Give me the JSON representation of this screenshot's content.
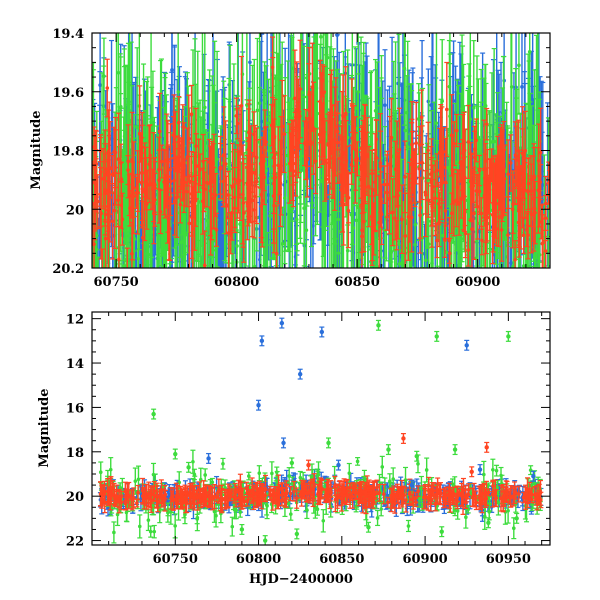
{
  "chart_data": [
    {
      "type": "scatter",
      "panel": "top",
      "title": "",
      "xlabel": "",
      "ylabel": "Magnitude",
      "xlim": [
        60740,
        60930
      ],
      "ylim": [
        20.2,
        19.4
      ],
      "y_inverted": true,
      "grid": false,
      "x_ticks": [
        "60750",
        "60800",
        "60850",
        "60900"
      ],
      "x_tick_values": [
        60750,
        60800,
        60850,
        60900
      ],
      "y_ticks": [
        "19.4",
        "19.6",
        "19.8",
        "20",
        "20.2"
      ],
      "y_tick_values": [
        19.4,
        19.6,
        19.8,
        20.0,
        20.2
      ],
      "series": [
        {
          "color": "#2a6fdb",
          "typical_mag": 19.95,
          "scatter": 0.35,
          "error": 0.25
        },
        {
          "color": "#3ddc3d",
          "typical_mag": 19.95,
          "scatter": 0.35,
          "error": 0.28
        },
        {
          "color": "#ff4422",
          "typical_mag": 19.92,
          "scatter": 0.2,
          "error": 0.12
        }
      ]
    },
    {
      "type": "scatter",
      "panel": "bottom",
      "title": "",
      "xlabel": "HJD−2400000",
      "ylabel": "Magnitude",
      "xlim": [
        60700,
        60975
      ],
      "ylim": [
        22.2,
        11.7
      ],
      "y_inverted": true,
      "grid": false,
      "x_ticks": [
        "60750",
        "60800",
        "60850",
        "60900",
        "60950"
      ],
      "x_tick_values": [
        60750,
        60800,
        60850,
        60900,
        60950
      ],
      "y_ticks": [
        "12",
        "14",
        "16",
        "18",
        "20",
        "22"
      ],
      "y_tick_values": [
        12,
        14,
        16,
        18,
        20,
        22
      ],
      "series": [
        {
          "color": "#2a6fdb",
          "outliers": [
            {
              "x": 60802,
              "y": 13.0
            },
            {
              "x": 60814,
              "y": 12.2
            },
            {
              "x": 60838,
              "y": 12.6
            },
            {
              "x": 60825,
              "y": 14.5
            },
            {
              "x": 60800,
              "y": 15.9
            },
            {
              "x": 60815,
              "y": 17.6
            },
            {
              "x": 60770,
              "y": 18.3
            },
            {
              "x": 60925,
              "y": 13.2
            },
            {
              "x": 60892,
              "y": 19.5
            },
            {
              "x": 60848,
              "y": 18.6
            },
            {
              "x": 60933,
              "y": 18.8
            },
            {
              "x": 60965,
              "y": 19.1
            }
          ]
        },
        {
          "color": "#3ddc3d",
          "outliers": [
            {
              "x": 60872,
              "y": 12.3
            },
            {
              "x": 60907,
              "y": 12.8
            },
            {
              "x": 60950,
              "y": 12.8
            },
            {
              "x": 60737,
              "y": 16.3
            },
            {
              "x": 60750,
              "y": 18.1
            },
            {
              "x": 60758,
              "y": 18.7
            },
            {
              "x": 60820,
              "y": 18.5
            },
            {
              "x": 60842,
              "y": 17.6
            },
            {
              "x": 60878,
              "y": 17.9
            },
            {
              "x": 60895,
              "y": 18.2
            },
            {
              "x": 60918,
              "y": 17.9
            },
            {
              "x": 60790,
              "y": 21.5
            },
            {
              "x": 60804,
              "y": 22.0
            },
            {
              "x": 60823,
              "y": 21.7
            },
            {
              "x": 60866,
              "y": 21.4
            },
            {
              "x": 60910,
              "y": 21.6
            },
            {
              "x": 60938,
              "y": 21.2
            },
            {
              "x": 60955,
              "y": 21.0
            }
          ]
        },
        {
          "color": "#ff4422",
          "outliers": [
            {
              "x": 60887,
              "y": 17.4
            },
            {
              "x": 60937,
              "y": 17.8
            },
            {
              "x": 60830,
              "y": 18.6
            },
            {
              "x": 60928,
              "y": 18.9
            }
          ]
        }
      ]
    }
  ]
}
